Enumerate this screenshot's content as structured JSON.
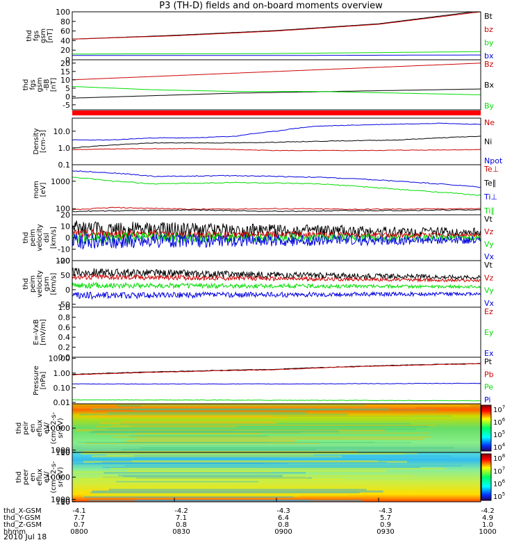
{
  "title": "P3 (TH-D) fields and on-board moments overview",
  "date": "2010 Jul 18",
  "colors": {
    "black": "#000000",
    "red": "#cc0000",
    "green": "#00dd00",
    "blue": "#0000dd",
    "brown": "#8b0000"
  },
  "chart_data": [
    {
      "id": "p1",
      "type": "line",
      "ylabel": [
        "thd",
        "fgs",
        "gsm",
        "[nT]"
      ],
      "ylim": [
        0,
        100
      ],
      "yticks": [
        "0",
        "20",
        "40",
        "60",
        "80",
        "100"
      ],
      "legend": [
        {
          "text": "Bt",
          "color": "black"
        },
        {
          "text": "bz",
          "color": "red"
        },
        {
          "text": "by",
          "color": "green"
        },
        {
          "text": "bx",
          "color": "blue"
        }
      ],
      "series": [
        {
          "color": "black",
          "t": [
            0,
            0.25,
            0.5,
            0.75,
            1
          ],
          "v": [
            43,
            51,
            61,
            75,
            102
          ]
        },
        {
          "color": "red",
          "t": [
            0,
            0.25,
            0.5,
            0.75,
            1
          ],
          "v": [
            43,
            50,
            60,
            74,
            100
          ]
        },
        {
          "color": "green",
          "t": [
            0,
            0.5,
            1
          ],
          "v": [
            12,
            13,
            17
          ]
        },
        {
          "color": "blue",
          "t": [
            0,
            0.5,
            1
          ],
          "v": [
            9,
            9,
            10
          ]
        }
      ]
    },
    {
      "id": "p2",
      "type": "line",
      "ylabel": [
        "thd",
        "fgs",
        "gsm",
        "-BB",
        "[nT]"
      ],
      "ylim": [
        -8,
        22
      ],
      "yticks": [
        "-5",
        "0",
        "5",
        "10",
        "15",
        "20"
      ],
      "legend": [
        {
          "text": "Bz",
          "color": "red"
        },
        {
          "text": "Bx",
          "color": "black"
        },
        {
          "text": "By",
          "color": "green"
        }
      ],
      "series": [
        {
          "color": "red",
          "t": [
            0,
            0.5,
            1
          ],
          "v": [
            10,
            15,
            20
          ]
        },
        {
          "color": "black",
          "t": [
            0,
            0.4,
            1
          ],
          "v": [
            -1,
            2,
            4.5
          ]
        },
        {
          "color": "green",
          "t": [
            0,
            0.1,
            0.2,
            0.4,
            0.6,
            0.8,
            1
          ],
          "v": [
            6,
            5,
            4,
            3,
            3,
            2,
            1
          ]
        }
      ]
    },
    {
      "id": "p3",
      "type": "line",
      "scale": "log",
      "ylabel": [
        "Density",
        "[cm-3]"
      ],
      "ylim": [
        0.1,
        60
      ],
      "yticks": [
        "0.1",
        "1.0",
        "10.0"
      ],
      "legend": [
        {
          "text": "Ne",
          "color": "red"
        },
        {
          "text": "Ni",
          "color": "black"
        },
        {
          "text": "Npot",
          "color": "blue"
        }
      ],
      "series": [
        {
          "color": "blue",
          "t": [
            0,
            0.1,
            0.2,
            0.3,
            0.4,
            0.5,
            0.6,
            0.75,
            0.9,
            1
          ],
          "v": [
            3,
            3,
            4,
            4,
            5,
            10,
            20,
            25,
            30,
            25
          ]
        },
        {
          "color": "black",
          "t": [
            0,
            0.1,
            0.2,
            0.3,
            0.4,
            0.5,
            0.6,
            0.8,
            1
          ],
          "v": [
            1,
            1.5,
            2,
            2,
            2,
            2.2,
            2.5,
            3,
            5
          ]
        },
        {
          "color": "red",
          "t": [
            0,
            0.15,
            0.3,
            0.5,
            0.7,
            1
          ],
          "v": [
            0.8,
            0.9,
            0.9,
            0.7,
            0.7,
            0.8
          ]
        }
      ]
    },
    {
      "id": "p4",
      "type": "line",
      "scale": "log",
      "ylabel": [
        "mom",
        "[eV]"
      ],
      "ylim": [
        60,
        4000
      ],
      "yticks": [
        "100",
        "1000"
      ],
      "legend": [
        {
          "text": "Te⊥",
          "color": "red"
        },
        {
          "text": "Te∥",
          "color": "black"
        },
        {
          "text": "Ti⊥",
          "color": "blue"
        },
        {
          "text": "Ti∥",
          "color": "green"
        }
      ],
      "series": [
        {
          "color": "blue",
          "t": [
            0,
            0.1,
            0.2,
            0.4,
            0.6,
            0.8,
            1
          ],
          "v": [
            2400,
            2000,
            1500,
            1600,
            1400,
            1000,
            600
          ]
        },
        {
          "color": "green",
          "t": [
            0,
            0.1,
            0.2,
            0.4,
            0.6,
            0.8,
            1
          ],
          "v": [
            1400,
            1000,
            800,
            900,
            800,
            500,
            300
          ]
        },
        {
          "color": "red",
          "t": [
            0,
            0.1,
            0.3,
            0.5,
            0.7,
            1
          ],
          "v": [
            90,
            110,
            95,
            100,
            95,
            100
          ]
        },
        {
          "color": "black",
          "t": [
            0,
            0.3,
            0.5,
            0.7,
            1
          ],
          "v": [
            80,
            90,
            80,
            85,
            90
          ]
        }
      ]
    },
    {
      "id": "p5",
      "type": "line",
      "noisy": true,
      "ylabel": [
        "thd",
        "peim",
        "velocity",
        "dsl",
        "[km/s]"
      ],
      "ylim": [
        -20,
        20
      ],
      "yticks": [
        "-20",
        "-10",
        "0",
        "10",
        "20"
      ],
      "legend": [
        {
          "text": "Vt",
          "color": "black"
        },
        {
          "text": "Vz",
          "color": "red"
        },
        {
          "text": "Vy",
          "color": "green"
        },
        {
          "text": "Vx",
          "color": "blue"
        }
      ],
      "series": [
        {
          "color": "black",
          "base": 7,
          "amp": 8
        },
        {
          "color": "red",
          "base": 3,
          "amp": 4
        },
        {
          "color": "green",
          "base": 0,
          "amp": 5
        },
        {
          "color": "blue",
          "base": -3,
          "amp": 7
        }
      ]
    },
    {
      "id": "p6",
      "type": "line",
      "noisy": true,
      "ylabel": [
        "thd",
        "peim",
        "velocity",
        "gsm",
        "[km/s]"
      ],
      "ylim": [
        -60,
        100
      ],
      "yticks": [
        "-50",
        "0",
        "50",
        "100"
      ],
      "legend": [
        {
          "text": "Vt",
          "color": "black"
        },
        {
          "text": "Vz",
          "color": "red"
        },
        {
          "text": "Vy",
          "color": "green"
        },
        {
          "text": "Vx",
          "color": "blue"
        }
      ],
      "series": [
        {
          "color": "black",
          "base": 60,
          "amp": 15
        },
        {
          "color": "red",
          "base": 45,
          "amp": 10
        },
        {
          "color": "green",
          "base": 15,
          "amp": 10
        },
        {
          "color": "blue",
          "base": -20,
          "amp": 12
        }
      ]
    },
    {
      "id": "p7",
      "type": "line",
      "ylabel": [
        "E=-VxB",
        "[mV/m]"
      ],
      "ylim": [
        0,
        1
      ],
      "yticks": [
        "0.0",
        "0.2",
        "0.4",
        "0.6",
        "0.8",
        "1.0"
      ],
      "legend": [
        {
          "text": "Ez",
          "color": "red"
        },
        {
          "text": "Ey",
          "color": "green"
        },
        {
          "text": "Ex",
          "color": "blue"
        }
      ],
      "series": []
    },
    {
      "id": "p8",
      "type": "line",
      "scale": "log",
      "ylabel": [
        "Pressure",
        "[nPa]"
      ],
      "ylim": [
        0.008,
        12
      ],
      "yticks": [
        "0.01",
        "0.10",
        "1.00",
        "10.00"
      ],
      "legend": [
        {
          "text": "Pt",
          "color": "black"
        },
        {
          "text": "Pb",
          "color": "red"
        },
        {
          "text": "Pe",
          "color": "green"
        },
        {
          "text": "Pi",
          "color": "blue"
        }
      ],
      "series": [
        {
          "color": "black",
          "t": [
            0,
            0.5,
            1
          ],
          "v": [
            0.8,
            1.8,
            4.5
          ]
        },
        {
          "color": "red",
          "t": [
            0,
            0.5,
            1
          ],
          "v": [
            0.75,
            1.7,
            4.3
          ]
        },
        {
          "color": "blue",
          "t": [
            0,
            0.5,
            1
          ],
          "v": [
            0.18,
            0.18,
            0.2
          ]
        },
        {
          "color": "green",
          "t": [
            0,
            0.5,
            1
          ],
          "v": [
            0.015,
            0.014,
            0.013
          ]
        }
      ]
    },
    {
      "id": "p9",
      "type": "heatmap",
      "ylabel": [
        "thd",
        "peir",
        "en",
        "eflux",
        "eV/",
        "(cm^2-s-",
        "sr-eV)"
      ],
      "ylim": [
        8,
        20000
      ],
      "yticks": [
        "10",
        "100",
        "1000",
        "10000"
      ],
      "cbar_ticks": [
        "10",
        "10",
        "10",
        "10"
      ],
      "cbar_exp": [
        "7",
        "6",
        "5",
        "4"
      ],
      "cbar_label": ""
    },
    {
      "id": "p10",
      "type": "heatmap",
      "ylabel": [
        "thd",
        "peer",
        "en",
        "eflux",
        "eV/",
        "(cm^2-s-",
        "sr-eV)"
      ],
      "ylim": [
        8,
        20000
      ],
      "yticks": [
        "10",
        "100",
        "1000",
        "10000"
      ],
      "cbar_ticks": [
        "10",
        "10",
        "10",
        "10"
      ],
      "cbar_exp": [
        "8",
        "7",
        "6",
        "5"
      ],
      "cbar_label": ""
    }
  ],
  "xaxis": {
    "rows": [
      {
        "label": "thd_X-GSM",
        "values": [
          "-4.1",
          "-4.2",
          "-4.3",
          "-4.3",
          "-4.2"
        ]
      },
      {
        "label": "thd_Y-GSM",
        "values": [
          "7.7",
          "7.1",
          "6.4",
          "5.7",
          "4.9"
        ]
      },
      {
        "label": "thd_Z-GSM",
        "values": [
          "0.7",
          "0.8",
          "0.8",
          "0.9",
          "1.0"
        ]
      },
      {
        "label": "hhmm",
        "values": [
          "0800",
          "0830",
          "0900",
          "0930",
          "1000"
        ]
      }
    ]
  }
}
